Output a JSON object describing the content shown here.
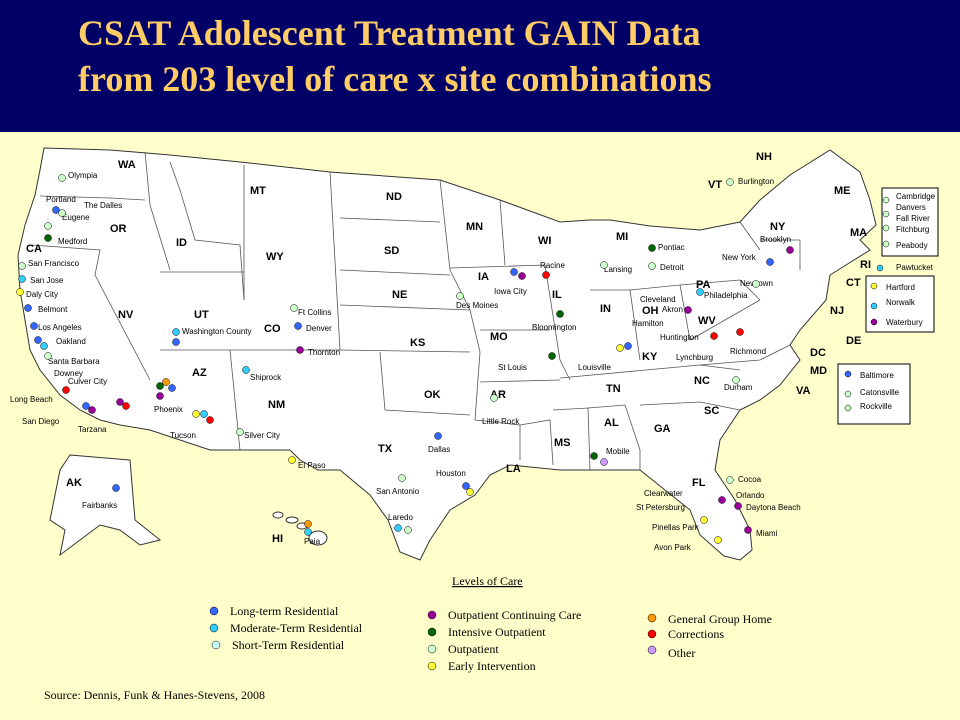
{
  "title": {
    "line1": "CSAT Adolescent Treatment GAIN Data",
    "line2": "from 203 level of care x site combinations"
  },
  "colors": {
    "header_bg": "#000066",
    "title_text": "#ffcc66",
    "background": "#ffffcc",
    "map_fill": "#ffffff"
  },
  "states": [
    "WA",
    "OR",
    "CA",
    "NV",
    "ID",
    "MT",
    "WY",
    "UT",
    "CO",
    "AZ",
    "NM",
    "ND",
    "SD",
    "NE",
    "KS",
    "OK",
    "TX",
    "MN",
    "IA",
    "MO",
    "AR",
    "LA",
    "WI",
    "IL",
    "MI",
    "IN",
    "OH",
    "KY",
    "TN",
    "MS",
    "AL",
    "GA",
    "FL",
    "SC",
    "NC",
    "VA",
    "WV",
    "PA",
    "NY",
    "VT",
    "NH",
    "ME",
    "MA",
    "RI",
    "CT",
    "NJ",
    "DE",
    "MD",
    "DC",
    "AK",
    "HI"
  ],
  "cities": [
    "Olympia",
    "Portland",
    "The Dalles",
    "Eugene",
    "Medford",
    "San Francisco",
    "San Jose",
    "Daly City",
    "Belmont",
    "Los Angeles",
    "Oakland",
    "Santa Barbara",
    "Downey",
    "Culver City",
    "Long Beach",
    "San Diego",
    "Tarzana",
    "Washington County",
    "Ft Collins",
    "Denver",
    "Thornton",
    "Phoenix",
    "Tucson",
    "Shiprock",
    "Silver City",
    "El Paso",
    "Dallas",
    "Houston",
    "San Antonio",
    "Laredo",
    "Iowa City",
    "Des Moines",
    "Racine",
    "Bloomington",
    "St Louis",
    "Little Rock",
    "Lansing",
    "Pontiac",
    "Detroit",
    "Louisville",
    "Cleveland",
    "Akron",
    "Hamilton",
    "Huntington",
    "Lynchburg",
    "Richmond",
    "Durham",
    "Mobile",
    "Cocoa",
    "Orlando",
    "Daytona Beach",
    "Clearwater",
    "St Petersburg",
    "Pinellas Park",
    "Avon Park",
    "Miami",
    "Burlington",
    "New York",
    "Brooklyn",
    "Newtown",
    "Philadelphia",
    "Fairbanks",
    "Paia"
  ],
  "box_ma": [
    "Cambridge",
    "Danvers",
    "Fall River",
    "Fitchburg",
    "Peabody"
  ],
  "pawtucket": "Pawtucket",
  "box_ct": [
    "Hartford",
    "Norwalk",
    "Waterbury"
  ],
  "box_md": [
    "Baltimore",
    "Catonsville",
    "Rockville"
  ],
  "legend": {
    "title": "Levels of Care",
    "items": [
      {
        "label": "Long-term Residential",
        "color": "#3366ff"
      },
      {
        "label": "Moderate-Term Residential",
        "color": "#33ccff"
      },
      {
        "label": "Short-Term Residential",
        "color": "#ccffff"
      },
      {
        "label": "Outpatient Continuing Care",
        "color": "#990099"
      },
      {
        "label": "Intensive Outpatient",
        "color": "#006600"
      },
      {
        "label": "Outpatient",
        "color": "#ccffcc"
      },
      {
        "label": "Early Intervention",
        "color": "#ffff33"
      },
      {
        "label": "General Group Home",
        "color": "#ff9900"
      },
      {
        "label": "Corrections",
        "color": "#ff0000"
      },
      {
        "label": "Other",
        "color": "#cc99ff"
      }
    ]
  },
  "source": "Source:  Dennis, Funk & Hanes-Stevens, 2008"
}
